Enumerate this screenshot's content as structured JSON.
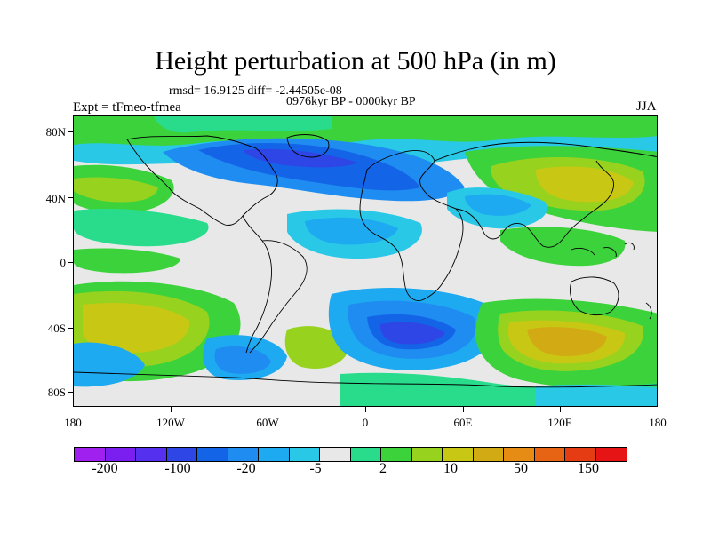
{
  "title": "Height perturbation at 500 hPa (in m)",
  "stats_line": "rmsd= 16.9125 diff= -2.44505e-08",
  "period": "0976kyr BP - 0000kyr BP",
  "experiment": "Expt = tFmeo-tfmea",
  "season": "JJA",
  "y_axis_labels": [
    "80N",
    "40N",
    "0",
    "40S",
    "80S"
  ],
  "x_axis_labels": [
    "180",
    "120W",
    "60W",
    "0",
    "60E",
    "120E",
    "180"
  ],
  "colorbar": {
    "labels": [
      "-200",
      "-100",
      "-20",
      "-5",
      "2",
      "10",
      "50",
      "150"
    ],
    "colors": [
      "#a020f0",
      "#7a1ff0",
      "#5530ee",
      "#2e46e6",
      "#1464e8",
      "#1e8cf0",
      "#1eaaf0",
      "#28c8e6",
      "#e8e8e8",
      "#28dc8c",
      "#3cd23c",
      "#96d21e",
      "#c8c814",
      "#d2aa14",
      "#e68c14",
      "#e66414",
      "#e63c14",
      "#e61414"
    ]
  }
}
